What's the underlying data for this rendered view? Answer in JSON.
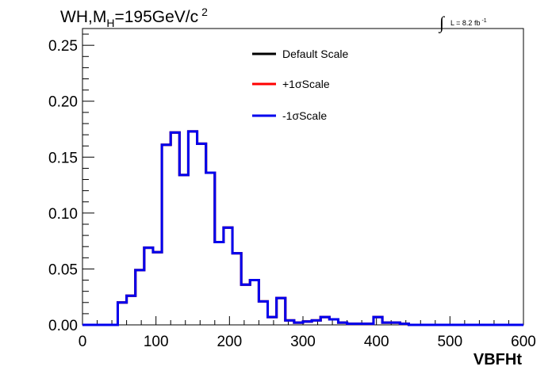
{
  "chart_data": {
    "type": "line",
    "title_main": "WH,M",
    "title_sub": "H",
    "title_rest": "=195GeV/c",
    "title_sup": "2",
    "lumi_label": "L = 8.2 fb",
    "lumi_sup": "-1",
    "integral_symbol": "∫",
    "xlabel": "VBFHt",
    "ylabel": "",
    "xlim": [
      0,
      600
    ],
    "ylim": [
      0,
      0.265
    ],
    "x_ticks": [
      "0",
      "100",
      "200",
      "300",
      "400",
      "500",
      "600"
    ],
    "y_ticks": [
      "0.00",
      "0.05",
      "0.10",
      "0.15",
      "0.20",
      "0.25"
    ],
    "x_tick_values": [
      0,
      100,
      200,
      300,
      400,
      500,
      600
    ],
    "y_tick_values": [
      0,
      0.05,
      0.1,
      0.15,
      0.2,
      0.25
    ],
    "grid": false,
    "legend_position": "top-center",
    "bin_width": 12,
    "bin_edges_start": 0,
    "series": [
      {
        "name": "Default Scale",
        "color": "#000000",
        "values": [
          0,
          0,
          0,
          0,
          0.02,
          0.026,
          0.049,
          0.069,
          0.065,
          0.161,
          0.172,
          0.134,
          0.173,
          0.162,
          0.136,
          0.074,
          0.087,
          0.064,
          0.036,
          0.04,
          0.021,
          0.007,
          0.024,
          0.004,
          0.002,
          0.003,
          0.004,
          0.007,
          0.005,
          0.002,
          0.001,
          0.001,
          0.001,
          0.007,
          0.002,
          0.002,
          0.001,
          0,
          0,
          0,
          0,
          0,
          0,
          0,
          0,
          0,
          0,
          0,
          0,
          0
        ]
      },
      {
        "name": "+1σScale",
        "color": "#ff0000",
        "values": [
          0,
          0,
          0,
          0,
          0.02,
          0.026,
          0.049,
          0.069,
          0.065,
          0.161,
          0.172,
          0.134,
          0.173,
          0.162,
          0.136,
          0.074,
          0.087,
          0.064,
          0.036,
          0.04,
          0.021,
          0.007,
          0.024,
          0.004,
          0.002,
          0.003,
          0.004,
          0.007,
          0.005,
          0.002,
          0.001,
          0.001,
          0.001,
          0.007,
          0.002,
          0.002,
          0.001,
          0,
          0,
          0,
          0,
          0,
          0,
          0,
          0,
          0,
          0,
          0,
          0,
          0
        ]
      },
      {
        "name": "-1σScale",
        "color": "#0000ee",
        "values": [
          0,
          0,
          0,
          0,
          0.02,
          0.026,
          0.049,
          0.069,
          0.065,
          0.161,
          0.172,
          0.134,
          0.173,
          0.162,
          0.136,
          0.074,
          0.087,
          0.064,
          0.036,
          0.04,
          0.021,
          0.007,
          0.024,
          0.004,
          0.002,
          0.003,
          0.004,
          0.007,
          0.005,
          0.002,
          0.001,
          0.001,
          0.001,
          0.007,
          0.002,
          0.002,
          0.001,
          0,
          0,
          0,
          0,
          0,
          0,
          0,
          0,
          0,
          0,
          0,
          0,
          0
        ]
      }
    ]
  }
}
